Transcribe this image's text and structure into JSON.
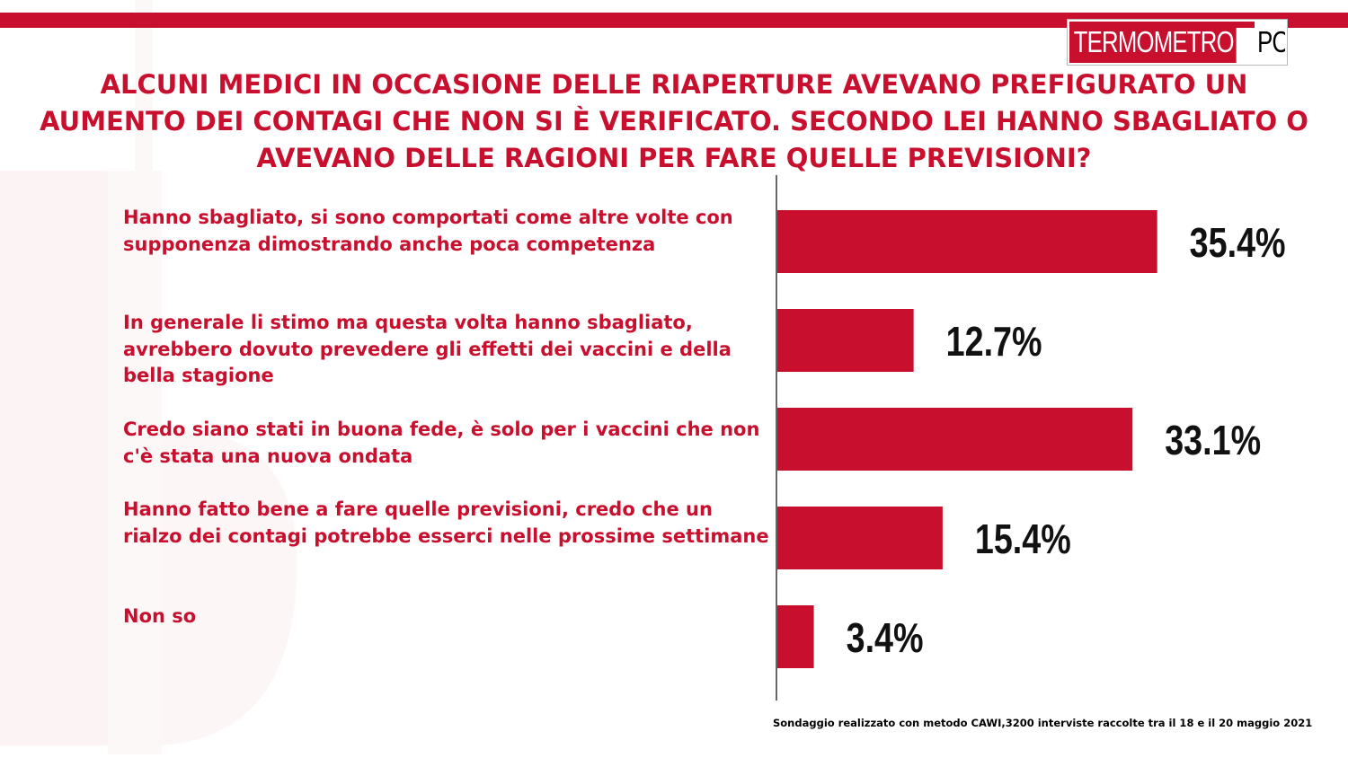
{
  "brand": {
    "logo_part1": "TERMOMETRO",
    "logo_part2": "POLITICO",
    "accent_color": "#c8102e"
  },
  "title": "ALCUNI MEDICI IN OCCASIONE DELLE RIAPERTURE AVEVANO PREFIGURATO UN AUMENTO DEI CONTAGI CHE NON SI È VERIFICATO. SECONDO LEI HANNO SBAGLIATO O AVEVANO DELLE RAGIONI PER FARE QUELLE PREVISIONI?",
  "footnote": "Sondaggio realizzato con metodo CAWI,3200 interviste raccolte tra il 18  e il 20 maggio 2021",
  "chart_data": {
    "type": "bar",
    "orientation": "horizontal",
    "categories": [
      "Hanno sbagliato, si sono comportati come altre volte con supponenza dimostrando anche poca competenza",
      "In generale li stimo ma questa volta hanno sbagliato, avrebbero dovuto prevedere gli effetti dei vaccini e della bella stagione",
      "Credo siano stati in buona fede, è solo per i vaccini che non c'è stata una nuova ondata",
      "Hanno fatto bene a fare quelle previsioni, credo che un rialzo dei contagi potrebbe esserci nelle prossime settimane",
      "Non so"
    ],
    "values": [
      35.4,
      12.7,
      33.1,
      15.4,
      3.4
    ],
    "value_labels": [
      "35.4%",
      "12.7%",
      "33.1%",
      "15.4%",
      "3.4%"
    ],
    "title": "ALCUNI MEDICI IN OCCASIONE DELLE RIAPERTURE AVEVANO PREFIGURATO UN AUMENTO DEI CONTAGI CHE NON SI È VERIFICATO. SECONDO LEI HANNO SBAGLIATO O AVEVANO DELLE RAGIONI PER FARE QUELLE PREVISIONI?",
    "xlabel": "",
    "ylabel": "",
    "bar_color": "#c8102e",
    "grid": false,
    "legend": "none"
  }
}
